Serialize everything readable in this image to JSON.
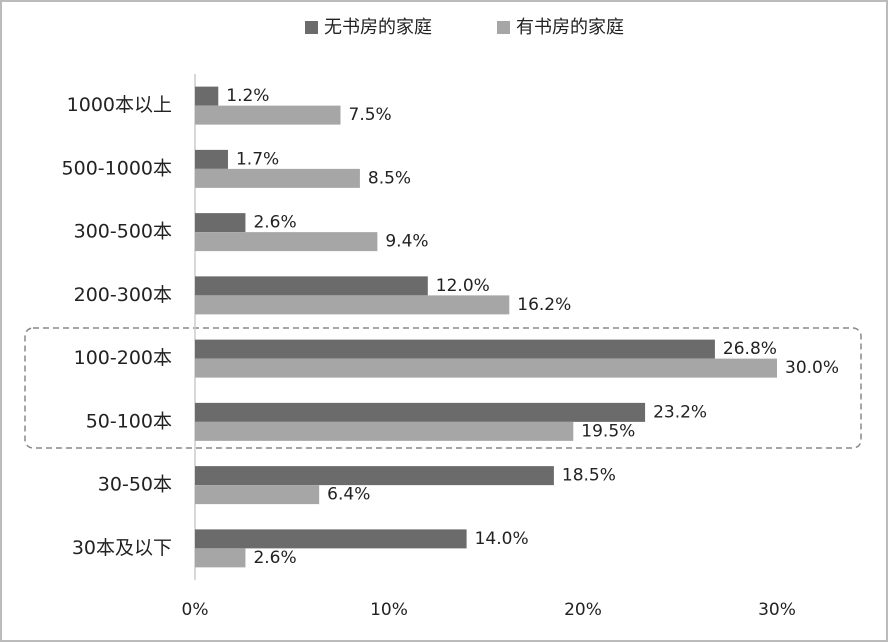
{
  "chart_data": {
    "type": "bar",
    "orientation": "horizontal",
    "categories": [
      "1000本以上",
      "500-1000本",
      "300-500本",
      "200-300本",
      "100-200本",
      "50-100本",
      "30-50本",
      "30本及以下"
    ],
    "series": [
      {
        "name": "无书房的家庭",
        "color": "#6b6b6b",
        "values": [
          1.2,
          1.7,
          2.6,
          12.0,
          26.8,
          23.2,
          18.5,
          14.0
        ],
        "value_labels": [
          "1.2%",
          "1.7%",
          "2.6%",
          "12.0%",
          "26.8%",
          "23.2%",
          "18.5%",
          "14.0%"
        ]
      },
      {
        "name": "有书房的家庭",
        "color": "#a6a6a6",
        "values": [
          7.5,
          8.5,
          9.4,
          16.2,
          30.0,
          19.5,
          6.4,
          2.6
        ],
        "value_labels": [
          "7.5%",
          "8.5%",
          "9.4%",
          "16.2%",
          "30.0%",
          "19.5%",
          "6.4%",
          "2.6%"
        ]
      }
    ],
    "xlim": [
      0,
      30
    ],
    "xticks": [
      {
        "value": 0,
        "label": "0%"
      },
      {
        "value": 10,
        "label": "10%"
      },
      {
        "value": 20,
        "label": "20%"
      },
      {
        "value": 30,
        "label": "30%"
      }
    ]
  }
}
